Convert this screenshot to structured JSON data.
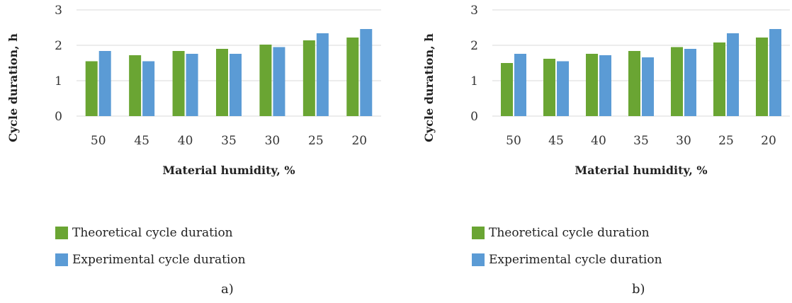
{
  "chart_data": [
    {
      "panel": "a",
      "type": "bar",
      "categories": [
        "50",
        "45",
        "40",
        "35",
        "30",
        "25",
        "20"
      ],
      "series": [
        {
          "name": "Theoretical cycle duration",
          "color": "#6aa533",
          "values": [
            1.55,
            1.72,
            1.84,
            1.9,
            2.02,
            2.14,
            2.22
          ]
        },
        {
          "name": "Experimental cycle duration",
          "color": "#5b9bd5",
          "values": [
            1.84,
            1.55,
            1.76,
            1.76,
            1.95,
            2.34,
            2.46
          ]
        }
      ],
      "xlabel": "Material humidity, %",
      "ylabel": "Cycle duration, h",
      "yticks": [
        "0",
        "1",
        "2",
        "3"
      ],
      "ylim": [
        0,
        3
      ],
      "grid": true,
      "legend_position": "bottom-left",
      "caption": "a)"
    },
    {
      "panel": "b",
      "type": "bar",
      "categories": [
        "50",
        "45",
        "40",
        "35",
        "30",
        "25",
        "20"
      ],
      "series": [
        {
          "name": "Theoretical cycle duration",
          "color": "#6aa533",
          "values": [
            1.5,
            1.62,
            1.76,
            1.84,
            1.95,
            2.08,
            2.22
          ]
        },
        {
          "name": "Experimental cycle duration",
          "color": "#5b9bd5",
          "values": [
            1.76,
            1.55,
            1.72,
            1.66,
            1.9,
            2.34,
            2.46
          ]
        }
      ],
      "xlabel": "Material humidity, %",
      "ylabel": "Cycle duration, h",
      "yticks": [
        "0",
        "1",
        "2",
        "3"
      ],
      "ylim": [
        0,
        3
      ],
      "grid": true,
      "legend_position": "bottom-left",
      "caption": "b)"
    }
  ]
}
